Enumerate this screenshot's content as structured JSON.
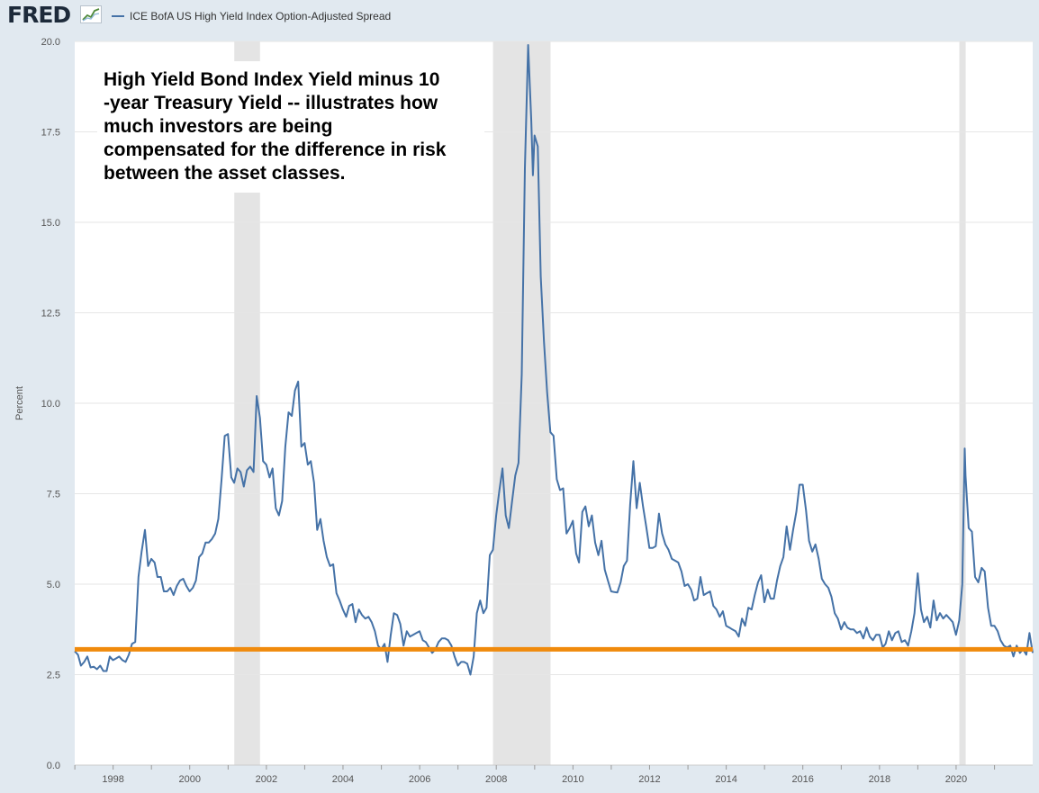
{
  "header": {
    "logo_text": "FRED",
    "logo_icon": "fred-line-chart-icon",
    "legend_label": "ICE BofA US High Yield Index Option-Adjusted Spread"
  },
  "annotation": {
    "lines": [
      "High Yield Bond Index Yield minus 10",
      "-year Treasury Yield -- illustrates how",
      "much investors are being",
      "compensated for the difference in risk",
      "between the asset classes."
    ]
  },
  "colors": {
    "page_background": "#e1e9f0",
    "plot_background": "#ffffff",
    "series_line": "#4572a7",
    "reference_line": "#f08a0c",
    "recession_band": "#e4e4e4",
    "gridline": "#e6e6e6"
  },
  "chart_data": {
    "type": "line",
    "title": "",
    "xlabel": "",
    "ylabel": "Percent",
    "xlim": [
      "1996-12-31",
      "2021-12-31"
    ],
    "ylim": [
      0,
      20
    ],
    "yticks": [
      0,
      2.5,
      5,
      7.5,
      10,
      12.5,
      15,
      17.5,
      20
    ],
    "ytick_labels": [
      "0.0",
      "2.5",
      "5.0",
      "7.5",
      "10.0",
      "12.5",
      "15.0",
      "17.5",
      "20.0"
    ],
    "xticks": [
      "1998",
      "2000",
      "2002",
      "2004",
      "2006",
      "2008",
      "2010",
      "2012",
      "2014",
      "2016",
      "2018",
      "2020"
    ],
    "grid": true,
    "legend_position": "top-left",
    "recessions": [
      {
        "start": "2001-03-01",
        "end": "2001-11-01"
      },
      {
        "start": "2007-12-01",
        "end": "2009-06-01"
      },
      {
        "start": "2020-02-01",
        "end": "2020-04-01"
      }
    ],
    "reference_line": {
      "y": 3.2
    },
    "series": [
      {
        "x": [
          "1996-12-31",
          "1997-01-31",
          "1997-02-28",
          "1997-03-31",
          "1997-04-30",
          "1997-05-31",
          "1997-06-30",
          "1997-07-31",
          "1997-08-31",
          "1997-09-30",
          "1997-10-31",
          "1997-11-30",
          "1997-12-31",
          "1998-01-31",
          "1998-02-28",
          "1998-03-31",
          "1998-04-30",
          "1998-05-31",
          "1998-06-30",
          "1998-07-31",
          "1998-08-31",
          "1998-09-30",
          "1998-10-31",
          "1998-11-30",
          "1998-12-31",
          "1999-01-31",
          "1999-02-28",
          "1999-03-31",
          "1999-04-30",
          "1999-05-31",
          "1999-06-30",
          "1999-07-31",
          "1999-08-31",
          "1999-09-30",
          "1999-10-31",
          "1999-11-30",
          "1999-12-31",
          "2000-01-31",
          "2000-02-29",
          "2000-03-31",
          "2000-04-30",
          "2000-05-31",
          "2000-06-30",
          "2000-07-31",
          "2000-08-31",
          "2000-09-30",
          "2000-10-31",
          "2000-11-30",
          "2000-12-31",
          "2001-01-31",
          "2001-02-28",
          "2001-03-31",
          "2001-04-30",
          "2001-05-31",
          "2001-06-30",
          "2001-07-31",
          "2001-08-31",
          "2001-09-30",
          "2001-10-31",
          "2001-11-30",
          "2001-12-31",
          "2002-01-31",
          "2002-02-28",
          "2002-03-31",
          "2002-04-30",
          "2002-05-31",
          "2002-06-30",
          "2002-07-31",
          "2002-08-31",
          "2002-09-30",
          "2002-10-31",
          "2002-11-30",
          "2002-12-31",
          "2003-01-31",
          "2003-02-28",
          "2003-03-31",
          "2003-04-30",
          "2003-05-31",
          "2003-06-30",
          "2003-07-31",
          "2003-08-31",
          "2003-09-30",
          "2003-10-31",
          "2003-11-30",
          "2003-12-31",
          "2004-01-31",
          "2004-02-29",
          "2004-03-31",
          "2004-04-30",
          "2004-05-31",
          "2004-06-30",
          "2004-07-31",
          "2004-08-31",
          "2004-09-30",
          "2004-10-31",
          "2004-11-30",
          "2004-12-31",
          "2005-01-31",
          "2005-02-28",
          "2005-03-31",
          "2005-04-30",
          "2005-05-31",
          "2005-06-30",
          "2005-07-31",
          "2005-08-31",
          "2005-09-30",
          "2005-10-31",
          "2005-11-30",
          "2005-12-31",
          "2006-01-31",
          "2006-02-28",
          "2006-03-31",
          "2006-04-30",
          "2006-05-31",
          "2006-06-30",
          "2006-07-31",
          "2006-08-31",
          "2006-09-30",
          "2006-10-31",
          "2006-11-30",
          "2006-12-31",
          "2007-01-31",
          "2007-02-28",
          "2007-03-31",
          "2007-04-30",
          "2007-05-31",
          "2007-06-30",
          "2007-07-31",
          "2007-08-31",
          "2007-09-30",
          "2007-10-31",
          "2007-11-30",
          "2007-12-31",
          "2008-01-31",
          "2008-02-29",
          "2008-03-31",
          "2008-04-30",
          "2008-05-31",
          "2008-06-30",
          "2008-07-31",
          "2008-08-31",
          "2008-09-30",
          "2008-10-31",
          "2008-11-30",
          "2008-12-15",
          "2008-12-31",
          "2009-01-31",
          "2009-02-28",
          "2009-03-31",
          "2009-04-30",
          "2009-05-31",
          "2009-06-30",
          "2009-07-31",
          "2009-08-31",
          "2009-09-30",
          "2009-10-31",
          "2009-11-30",
          "2009-12-31",
          "2010-01-31",
          "2010-02-28",
          "2010-03-31",
          "2010-04-30",
          "2010-05-31",
          "2010-06-30",
          "2010-07-31",
          "2010-08-31",
          "2010-09-30",
          "2010-10-31",
          "2010-11-30",
          "2010-12-31",
          "2011-01-31",
          "2011-02-28",
          "2011-03-31",
          "2011-04-30",
          "2011-05-31",
          "2011-06-30",
          "2011-07-31",
          "2011-08-31",
          "2011-09-30",
          "2011-10-31",
          "2011-11-30",
          "2011-12-31",
          "2012-01-31",
          "2012-02-29",
          "2012-03-31",
          "2012-04-30",
          "2012-05-31",
          "2012-06-30",
          "2012-07-31",
          "2012-08-31",
          "2012-09-30",
          "2012-10-31",
          "2012-11-30",
          "2012-12-31",
          "2013-01-31",
          "2013-02-28",
          "2013-03-31",
          "2013-04-30",
          "2013-05-31",
          "2013-06-30",
          "2013-07-31",
          "2013-08-31",
          "2013-09-30",
          "2013-10-31",
          "2013-11-30",
          "2013-12-31",
          "2014-01-31",
          "2014-02-28",
          "2014-03-31",
          "2014-04-30",
          "2014-05-31",
          "2014-06-30",
          "2014-07-31",
          "2014-08-31",
          "2014-09-30",
          "2014-10-31",
          "2014-11-30",
          "2014-12-31",
          "2015-01-31",
          "2015-02-28",
          "2015-03-31",
          "2015-04-30",
          "2015-05-31",
          "2015-06-30",
          "2015-07-31",
          "2015-08-31",
          "2015-09-30",
          "2015-10-31",
          "2015-11-30",
          "2015-12-31",
          "2016-01-31",
          "2016-02-29",
          "2016-03-31",
          "2016-04-30",
          "2016-05-31",
          "2016-06-30",
          "2016-07-31",
          "2016-08-31",
          "2016-09-30",
          "2016-10-31",
          "2016-11-30",
          "2016-12-31",
          "2017-01-31",
          "2017-02-28",
          "2017-03-31",
          "2017-04-30",
          "2017-05-31",
          "2017-06-30",
          "2017-07-31",
          "2017-08-31",
          "2017-09-30",
          "2017-10-31",
          "2017-11-30",
          "2017-12-31",
          "2018-01-31",
          "2018-02-28",
          "2018-03-31",
          "2018-04-30",
          "2018-05-31",
          "2018-06-30",
          "2018-07-31",
          "2018-08-31",
          "2018-09-30",
          "2018-10-31",
          "2018-11-30",
          "2018-12-31",
          "2019-01-31",
          "2019-02-28",
          "2019-03-31",
          "2019-04-30",
          "2019-05-31",
          "2019-06-30",
          "2019-07-31",
          "2019-08-31",
          "2019-09-30",
          "2019-10-31",
          "2019-11-30",
          "2019-12-31",
          "2020-01-31",
          "2020-02-29",
          "2020-03-23",
          "2020-03-31",
          "2020-04-30",
          "2020-05-31",
          "2020-06-30",
          "2020-07-31",
          "2020-08-31",
          "2020-09-30",
          "2020-10-31",
          "2020-11-30",
          "2020-12-31",
          "2021-01-31",
          "2021-02-28",
          "2021-03-31",
          "2021-04-30",
          "2021-05-31",
          "2021-06-30",
          "2021-07-31",
          "2021-08-31",
          "2021-09-30",
          "2021-10-31",
          "2021-11-30",
          "2021-12-31"
        ],
        "values": [
          3.15,
          3.05,
          2.75,
          2.85,
          3.0,
          2.7,
          2.72,
          2.65,
          2.75,
          2.6,
          2.6,
          3.0,
          2.9,
          2.95,
          3.0,
          2.9,
          2.85,
          3.05,
          3.35,
          3.4,
          5.2,
          5.9,
          6.5,
          5.5,
          5.7,
          5.6,
          5.2,
          5.2,
          4.8,
          4.8,
          4.9,
          4.7,
          4.95,
          5.1,
          5.15,
          4.95,
          4.8,
          4.9,
          5.1,
          5.75,
          5.85,
          6.15,
          6.15,
          6.25,
          6.4,
          6.8,
          7.9,
          9.1,
          9.15,
          7.95,
          7.8,
          8.2,
          8.1,
          7.7,
          8.15,
          8.25,
          8.1,
          10.2,
          9.6,
          8.4,
          8.3,
          7.95,
          8.2,
          7.1,
          6.9,
          7.3,
          8.8,
          9.75,
          9.65,
          10.35,
          10.6,
          8.8,
          8.9,
          8.3,
          8.4,
          7.8,
          6.5,
          6.8,
          6.2,
          5.75,
          5.5,
          5.55,
          4.75,
          4.55,
          4.3,
          4.1,
          4.4,
          4.45,
          3.95,
          4.3,
          4.15,
          4.05,
          4.1,
          3.95,
          3.7,
          3.3,
          3.2,
          3.35,
          2.85,
          3.6,
          4.2,
          4.15,
          3.9,
          3.3,
          3.7,
          3.55,
          3.6,
          3.65,
          3.7,
          3.45,
          3.4,
          3.25,
          3.1,
          3.2,
          3.4,
          3.5,
          3.5,
          3.45,
          3.3,
          3.0,
          2.75,
          2.85,
          2.85,
          2.8,
          2.5,
          3.0,
          4.2,
          4.55,
          4.2,
          4.35,
          5.8,
          5.95,
          6.9,
          7.6,
          8.2,
          6.9,
          6.55,
          7.3,
          8.0,
          8.35,
          10.8,
          16.5,
          19.9,
          17.8,
          16.3,
          17.4,
          17.1,
          13.5,
          11.7,
          10.3,
          9.2,
          9.1,
          7.9,
          7.6,
          7.65,
          6.4,
          6.55,
          6.75,
          5.85,
          5.6,
          7.0,
          7.15,
          6.6,
          6.9,
          6.15,
          5.8,
          6.2,
          5.4,
          5.1,
          4.8,
          4.78,
          4.77,
          5.05,
          5.5,
          5.65,
          7.2,
          8.4,
          7.1,
          7.8,
          7.15,
          6.6,
          6.0,
          6.0,
          6.05,
          6.95,
          6.4,
          6.1,
          5.95,
          5.7,
          5.65,
          5.6,
          5.35,
          4.95,
          5.0,
          4.85,
          4.55,
          4.6,
          5.2,
          4.7,
          4.75,
          4.8,
          4.4,
          4.3,
          4.1,
          4.25,
          3.85,
          3.8,
          3.75,
          3.7,
          3.55,
          4.05,
          3.85,
          4.35,
          4.3,
          4.7,
          5.05,
          5.25,
          4.5,
          4.85,
          4.6,
          4.6,
          5.1,
          5.5,
          5.75,
          6.6,
          5.95,
          6.5,
          7.0,
          7.75,
          7.75,
          7.05,
          6.2,
          5.9,
          6.1,
          5.7,
          5.15,
          5.0,
          4.9,
          4.65,
          4.2,
          4.05,
          3.75,
          3.95,
          3.8,
          3.75,
          3.75,
          3.65,
          3.7,
          3.5,
          3.8,
          3.55,
          3.45,
          3.6,
          3.6,
          3.25,
          3.35,
          3.7,
          3.45,
          3.65,
          3.7,
          3.4,
          3.45,
          3.3,
          3.7,
          4.2,
          5.3,
          4.3,
          3.95,
          4.1,
          3.8,
          4.55,
          4.0,
          4.2,
          4.05,
          4.15,
          4.05,
          3.95,
          3.6,
          4.0,
          5.0,
          8.75,
          8.0,
          6.55,
          6.45,
          5.2,
          5.05,
          5.45,
          5.35,
          4.35,
          3.85,
          3.85,
          3.7,
          3.45,
          3.3,
          3.25,
          3.3,
          3.0,
          3.3,
          3.1,
          3.2,
          3.05,
          3.65,
          3.1
        ]
      }
    ]
  }
}
